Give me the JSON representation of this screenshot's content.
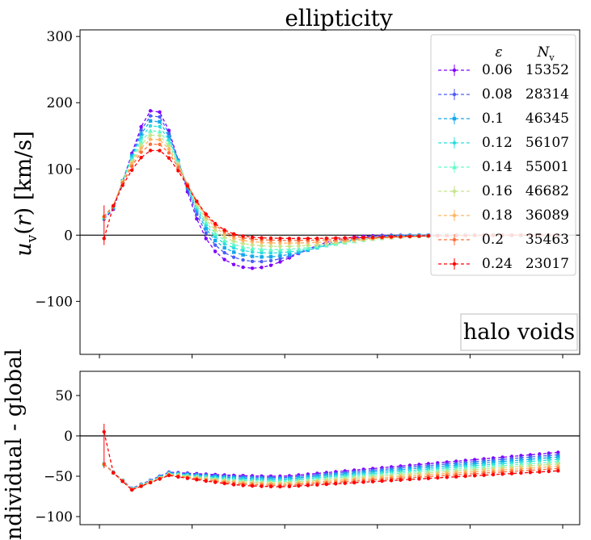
{
  "chart_data": [
    {
      "type": "line",
      "panel": "top",
      "title": "ellipticity",
      "ylabel": "u_v(r) [km/s]",
      "xlabel": "",
      "ylim": [
        -180,
        310
      ],
      "xlim": [
        0,
        1
      ],
      "yticks": [
        -100,
        0,
        100,
        200,
        300
      ],
      "ytick_labels": [
        "−100",
        "0",
        "100",
        "200",
        "300"
      ],
      "hline": 0,
      "annotation": "halo voids",
      "legend": {
        "placement": "top-right",
        "header_symbol": "ε",
        "header_count": "N",
        "header_count_sub": "v"
      },
      "x": [
        0.01,
        0.03,
        0.05,
        0.07,
        0.09,
        0.11,
        0.13,
        0.15,
        0.17,
        0.19,
        0.21,
        0.23,
        0.25,
        0.27,
        0.29,
        0.31,
        0.33,
        0.35,
        0.37,
        0.39,
        0.41,
        0.43,
        0.45,
        0.47,
        0.49,
        0.51,
        0.53,
        0.55,
        0.57,
        0.59,
        0.61,
        0.63,
        0.65,
        0.67,
        0.69,
        0.71,
        0.73,
        0.75,
        0.77,
        0.79,
        0.81,
        0.83,
        0.85,
        0.87,
        0.89,
        0.91,
        0.93,
        0.95,
        0.97,
        0.99
      ],
      "series": [
        {
          "name": "0.06",
          "count": "15352",
          "color": "#7f00ff",
          "marker": "circle"
        },
        {
          "name": "0.08",
          "count": "28314",
          "color": "#4a5df9",
          "marker": "star"
        },
        {
          "name": "0.1",
          "count": "46345",
          "color": "#14a8ed",
          "marker": "square"
        },
        {
          "name": "0.12",
          "count": "56107",
          "color": "#2adddd",
          "marker": "plus"
        },
        {
          "name": "0.14",
          "count": "55001",
          "color": "#60fac6",
          "marker": "triangle"
        },
        {
          "name": "0.16",
          "count": "46682",
          "color": "#c6e48c",
          "marker": "diamond"
        },
        {
          "name": "0.18",
          "count": "36089",
          "color": "#ffb360",
          "marker": "circle"
        },
        {
          "name": "0.2",
          "count": "35463",
          "color": "#ff6d38",
          "marker": "star"
        },
        {
          "name": "0.24",
          "count": "23017",
          "color": "#ff0000",
          "marker": "circle"
        }
      ]
    },
    {
      "type": "line",
      "panel": "bottom",
      "ylabel": "individual - global",
      "xlabel": "",
      "ylim": [
        -110,
        80
      ],
      "xlim": [
        0,
        1
      ],
      "yticks": [
        -100,
        -50,
        0,
        50
      ],
      "ytick_labels": [
        "−100",
        "−50",
        "0",
        "50"
      ],
      "hline": 0
    }
  ]
}
